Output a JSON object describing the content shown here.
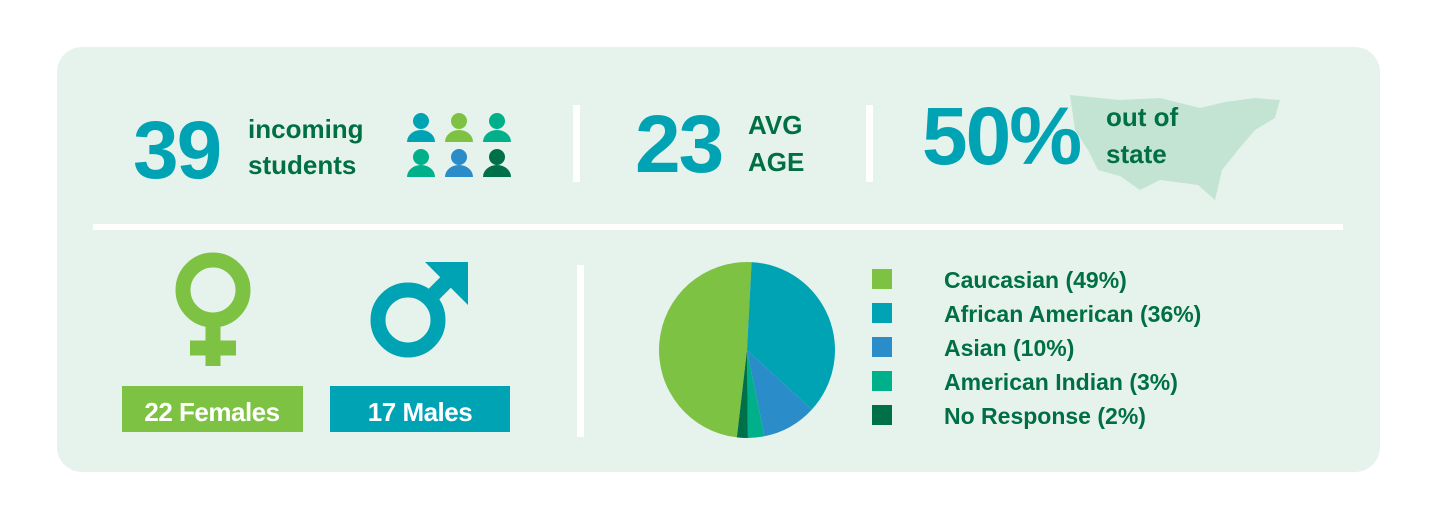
{
  "stats": {
    "students": {
      "value": 39,
      "line1": "incoming",
      "line2": "students"
    },
    "age": {
      "value": 23,
      "line1": "AVG",
      "line2": "AGE"
    },
    "out_of_state": {
      "value": "50%",
      "line1": "out of",
      "line2": "state"
    },
    "females": "22 Females",
    "males": "17 Males"
  },
  "chart_data": {
    "type": "pie",
    "categories": [
      "Caucasian (49%)",
      "African American (36%)",
      "Asian (10%)",
      "American Indian (3%)",
      "No Response (2%)"
    ],
    "values": [
      49,
      36,
      10,
      3,
      2
    ],
    "colors": [
      "#7dc242",
      "#00a3b4",
      "#2a8cc8",
      "#00b08a",
      "#00704a"
    ]
  }
}
